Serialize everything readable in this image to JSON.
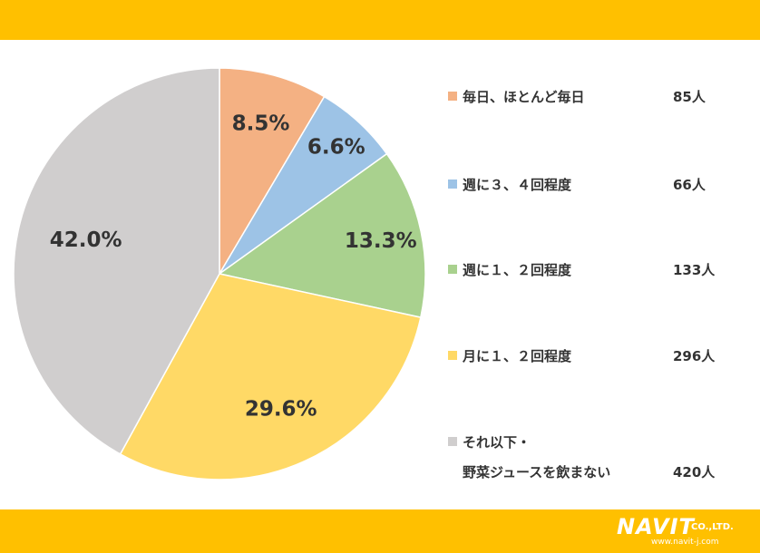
{
  "colors": {
    "band": "#FFC000",
    "series": [
      "#F4B183",
      "#9DC3E6",
      "#A9D18E",
      "#FFD966",
      "#D0CECE"
    ],
    "slice_border": "#ffffff"
  },
  "chart_data": {
    "type": "pie",
    "title": "",
    "start_angle_deg": 0,
    "direction": "clockwise",
    "slices": [
      {
        "label": "毎日、ほとんど毎日",
        "value": 8.5,
        "display": "8.5%",
        "count": "85人"
      },
      {
        "label": "週に３、４回程度",
        "value": 6.6,
        "display": "6.6%",
        "count": "66人"
      },
      {
        "label": "週に１、２回程度",
        "value": 13.3,
        "display": "13.3%",
        "count": "133人"
      },
      {
        "label": "月に１、２回程度",
        "value": 29.6,
        "display": "29.6%",
        "count": "296人"
      },
      {
        "label_lines": [
          "それ以下・",
          "野菜ジュースを飲まない"
        ],
        "value": 42.0,
        "display": "42.0%",
        "count": "420人"
      }
    ],
    "legend_placement": "right"
  },
  "logo": {
    "main": "NAVIT",
    "suffix": "CO.,LTD.",
    "url": "www.navit-j.com"
  }
}
